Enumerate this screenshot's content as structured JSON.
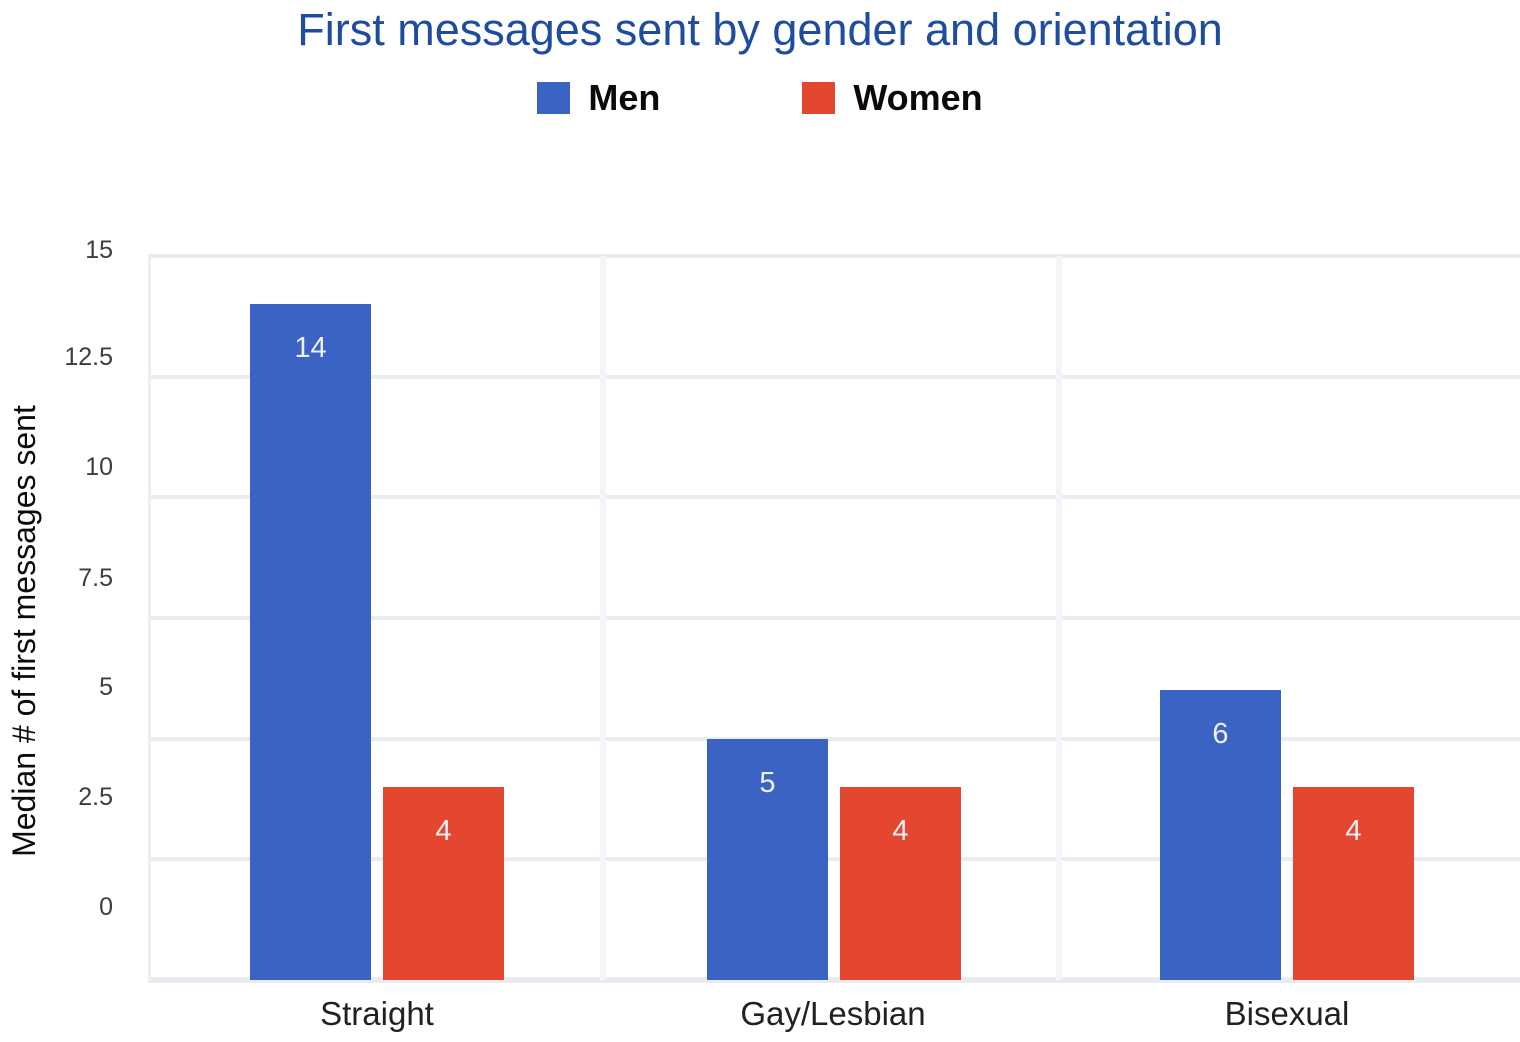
{
  "chart": {
    "title": "First messages sent by gender and orientation",
    "y_axis_title": "Median # of first messages sent"
  },
  "legend": {
    "items": [
      {
        "label": "Men",
        "color": "#3a63c4"
      },
      {
        "label": "Women",
        "color": "#e4462f"
      }
    ]
  },
  "colors": {
    "title_text": "#1e4c9f",
    "men_bar": "#3a63c4",
    "women_bar": "#e4462f",
    "gridline": "#ebecf2"
  },
  "chart_data": {
    "type": "bar",
    "title": "First messages sent by gender and orientation",
    "xlabel": "",
    "ylabel": "Median # of first messages sent",
    "categories": [
      "Straight",
      "Gay/Lesbian",
      "Bisexual"
    ],
    "series": [
      {
        "name": "Men",
        "color": "#3a63c4",
        "values": [
          14,
          5,
          6
        ]
      },
      {
        "name": "Women",
        "color": "#e4462f",
        "values": [
          4,
          4,
          4
        ]
      }
    ],
    "yticks": [
      "15",
      "12.5",
      "10",
      "7.5",
      "5",
      "2.5",
      "0"
    ],
    "ylim": [
      0,
      15
    ],
    "grid": true,
    "legend_position": "top",
    "bar_value_labels": true
  }
}
